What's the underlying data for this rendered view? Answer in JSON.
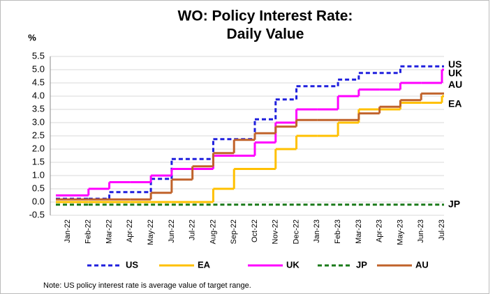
{
  "chart_data": {
    "type": "step",
    "title": [
      "WO: Policy Interest Rate:",
      "Daily Value"
    ],
    "y_label": "%",
    "note": "Note: US policy interest rate is average value of target range.",
    "categories": [
      "Jan-22",
      "Feb-22",
      "Mar-22",
      "Apr-22",
      "May-22",
      "Jun-22",
      "Jul-22",
      "Aug-22",
      "Sep-22",
      "Oct-22",
      "Nov-22",
      "Dec-22",
      "Jan-23",
      "Feb-23",
      "Mar-23",
      "Apr-23",
      "May-23",
      "Jun-23",
      "Jul-23"
    ],
    "series": [
      {
        "name": "US",
        "color": "#1f1fdd",
        "dashed": true,
        "values": [
          0.125,
          0.125,
          0.375,
          0.375,
          0.875,
          1.625,
          1.625,
          2.375,
          2.375,
          3.125,
          3.875,
          4.375,
          4.375,
          4.625,
          4.875,
          4.875,
          5.125,
          5.125,
          5.125
        ]
      },
      {
        "name": "EA",
        "color": "#ffc000",
        "dashed": false,
        "values": [
          0,
          0,
          0,
          0,
          0,
          0,
          0,
          0.5,
          1.25,
          1.25,
          2.0,
          2.5,
          2.5,
          3.0,
          3.5,
          3.5,
          3.75,
          3.75,
          4.0
        ]
      },
      {
        "name": "UK",
        "color": "#ff00ff",
        "dashed": false,
        "values": [
          0.25,
          0.5,
          0.75,
          0.75,
          1.0,
          1.25,
          1.25,
          1.75,
          1.75,
          2.25,
          3.0,
          3.5,
          3.5,
          4.0,
          4.25,
          4.25,
          4.5,
          4.5,
          5.0
        ]
      },
      {
        "name": "JP",
        "color": "#1a7a1a",
        "dashed": true,
        "values": [
          -0.1,
          -0.1,
          -0.1,
          -0.1,
          -0.1,
          -0.1,
          -0.1,
          -0.1,
          -0.1,
          -0.1,
          -0.1,
          -0.1,
          -0.1,
          -0.1,
          -0.1,
          -0.1,
          -0.1,
          -0.1,
          -0.1
        ]
      },
      {
        "name": "AU",
        "color": "#c0622a",
        "dashed": false,
        "values": [
          0.1,
          0.1,
          0.1,
          0.1,
          0.35,
          0.85,
          1.35,
          1.85,
          2.35,
          2.6,
          2.85,
          3.1,
          3.1,
          3.1,
          3.35,
          3.6,
          3.85,
          4.1,
          4.1
        ]
      }
    ],
    "ylim": [
      -0.5,
      5.5
    ],
    "yticks": [
      -0.5,
      {
        "value": 0,
        "label": "0.0"
      },
      0.5,
      {
        "value": 1,
        "label": "1.0"
      },
      1.5,
      {
        "value": 2,
        "label": "2.0"
      },
      2.5,
      {
        "value": 3,
        "label": "3.0"
      },
      3.5,
      {
        "value": 4,
        "label": "4.0"
      },
      4.5,
      {
        "value": 5,
        "label": "5.0"
      },
      5.5
    ],
    "grid": true
  }
}
